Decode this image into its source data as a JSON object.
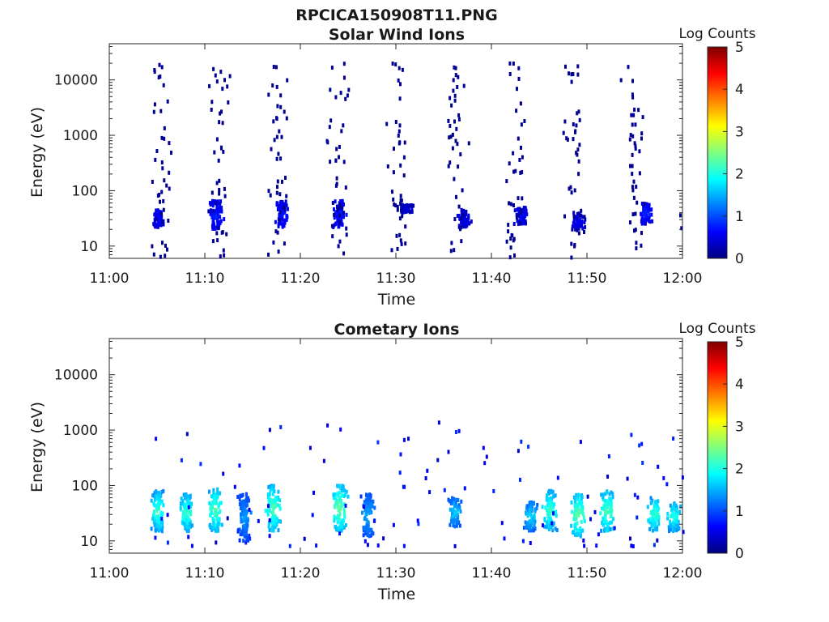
{
  "figure": {
    "title": "RPCICA150908T11.PNG"
  },
  "colormap": [
    "#00007f",
    "#0000ff",
    "#007fff",
    "#00ffff",
    "#7fff7f",
    "#ffff00",
    "#ff7f00",
    "#ff0000",
    "#7f0000"
  ],
  "chart_data": [
    {
      "type": "heatmap",
      "title": "Solar Wind Ions",
      "xlabel": "Time",
      "ylabel": "Energy (eV)",
      "xlim": [
        "11:00",
        "12:00"
      ],
      "ylim": [
        6,
        45000
      ],
      "yscale": "log",
      "xticks": [
        "11:00",
        "11:10",
        "11:20",
        "11:30",
        "11:40",
        "11:50",
        "12:00"
      ],
      "yticks": [
        10,
        100,
        1000,
        10000
      ],
      "ytick_labels": [
        "10",
        "100",
        "1000",
        "10000"
      ],
      "colorbar": {
        "label": "Log Counts",
        "range": [
          0,
          5
        ],
        "ticks": [
          "0",
          "1",
          "2",
          "3",
          "4",
          "5"
        ]
      },
      "sweep_cycle_minutes": 6.2,
      "clusters": [
        {
          "time": "11:05",
          "energy_range_eV": [
            22,
            45
          ],
          "log_counts": 0.6
        },
        {
          "time": "11:11",
          "energy_range_eV": [
            20,
            65
          ],
          "log_counts": 0.7
        },
        {
          "time": "11:18",
          "energy_range_eV": [
            22,
            65
          ],
          "log_counts": 0.7
        },
        {
          "time": "11:24",
          "energy_range_eV": [
            22,
            65
          ],
          "log_counts": 0.7
        },
        {
          "time": "11:31",
          "energy_range_eV": [
            40,
            55
          ],
          "log_counts": 0.4
        },
        {
          "time": "11:37",
          "energy_range_eV": [
            22,
            45
          ],
          "log_counts": 0.5
        },
        {
          "time": "11:43",
          "energy_range_eV": [
            25,
            50
          ],
          "log_counts": 0.6
        },
        {
          "time": "11:49",
          "energy_range_eV": [
            20,
            40
          ],
          "log_counts": 0.5
        },
        {
          "time": "11:56",
          "energy_range_eV": [
            25,
            60
          ],
          "log_counts": 0.7
        }
      ],
      "scatter_energy_range_eV": [
        6,
        20000
      ],
      "scatter_log_counts": 0.1
    },
    {
      "type": "heatmap",
      "title": "Cometary Ions",
      "xlabel": "Time",
      "ylabel": "Energy (eV)",
      "xlim": [
        "11:00",
        "12:00"
      ],
      "ylim": [
        6,
        45000
      ],
      "yscale": "log",
      "xticks": [
        "11:00",
        "11:10",
        "11:20",
        "11:30",
        "11:40",
        "11:50",
        "12:00"
      ],
      "yticks": [
        10,
        100,
        1000,
        10000
      ],
      "ytick_labels": [
        "10",
        "100",
        "1000",
        "10000"
      ],
      "colorbar": {
        "label": "Log Counts",
        "range": [
          0,
          5
        ],
        "ticks": [
          "0",
          "1",
          "2",
          "3",
          "4",
          "5"
        ]
      },
      "clusters": [
        {
          "time": "11:05",
          "energy_range_eV": [
            15,
            80
          ],
          "log_counts": 2.0
        },
        {
          "time": "11:08",
          "energy_range_eV": [
            15,
            70
          ],
          "log_counts": 2.0
        },
        {
          "time": "11:11",
          "energy_range_eV": [
            15,
            90
          ],
          "log_counts": 2.1
        },
        {
          "time": "11:14",
          "energy_range_eV": [
            10,
            70
          ],
          "log_counts": 1.3
        },
        {
          "time": "11:17",
          "energy_range_eV": [
            15,
            100
          ],
          "log_counts": 2.1
        },
        {
          "time": "11:24",
          "energy_range_eV": [
            15,
            100
          ],
          "log_counts": 2.2
        },
        {
          "time": "11:27",
          "energy_range_eV": [
            12,
            70
          ],
          "log_counts": 1.4
        },
        {
          "time": "11:36",
          "energy_range_eV": [
            18,
            60
          ],
          "log_counts": 1.5
        },
        {
          "time": "11:44",
          "energy_range_eV": [
            15,
            50
          ],
          "log_counts": 1.6
        },
        {
          "time": "11:46",
          "energy_range_eV": [
            15,
            80
          ],
          "log_counts": 2.0
        },
        {
          "time": "11:49",
          "energy_range_eV": [
            12,
            70
          ],
          "log_counts": 2.2
        },
        {
          "time": "11:52",
          "energy_range_eV": [
            15,
            80
          ],
          "log_counts": 2.1
        },
        {
          "time": "11:57",
          "energy_range_eV": [
            15,
            60
          ],
          "log_counts": 2.0
        },
        {
          "time": "11:59",
          "energy_range_eV": [
            15,
            50
          ],
          "log_counts": 1.9
        }
      ],
      "scatter_energy_range_eV": [
        6,
        1500
      ],
      "scatter_log_counts": 0.3
    }
  ]
}
